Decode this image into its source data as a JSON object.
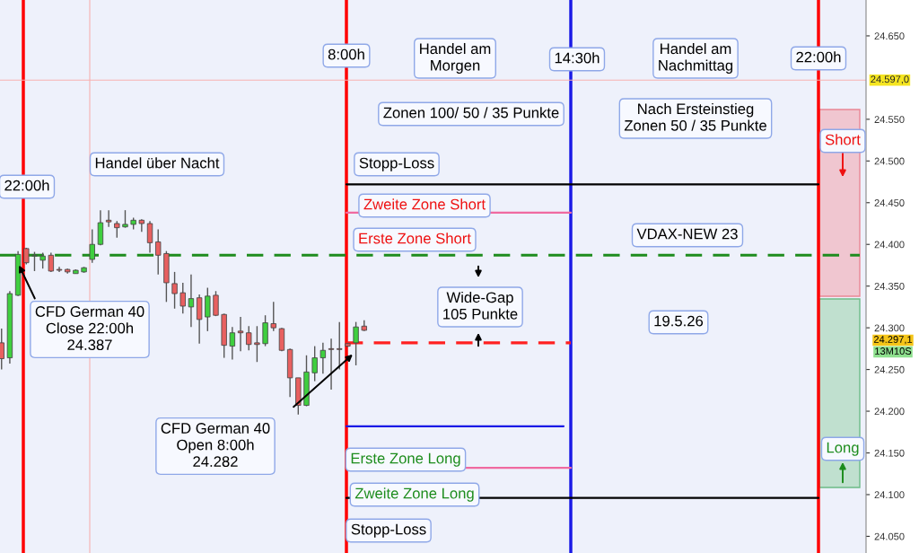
{
  "chart_data": {
    "type": "candlestick",
    "categories": [
      null,
      null,
      null,
      null,
      null,
      null,
      null,
      null,
      null,
      null,
      null,
      null,
      null,
      null,
      null,
      null,
      null,
      null,
      null,
      null,
      null,
      null,
      null,
      null,
      null,
      null,
      null,
      null,
      null,
      null,
      null,
      null,
      null,
      null,
      null,
      null,
      null,
      null,
      null,
      null,
      null,
      null,
      null,
      null,
      null,
      null,
      null,
      null,
      null,
      null,
      null,
      null,
      null,
      null,
      null,
      null,
      null,
      null,
      null,
      null,
      null,
      null,
      null,
      null,
      null,
      null,
      null,
      null,
      null,
      null,
      null,
      null,
      null,
      null,
      null,
      null,
      null,
      null,
      null,
      null,
      null,
      null,
      null,
      null,
      null,
      null,
      null,
      null,
      null,
      null,
      null,
      null,
      null,
      null,
      null,
      null,
      null,
      null,
      null,
      null,
      null,
      null,
      null,
      null,
      null
    ],
    "ohlc": [
      [
        24282,
        24299,
        24250,
        24263
      ],
      [
        24264,
        24344,
        24257,
        24341
      ],
      [
        24339,
        24392,
        24338,
        24388
      ],
      [
        24395,
        24396,
        24376,
        24378
      ],
      [
        24386,
        24391,
        24368,
        24387
      ],
      [
        24381,
        24390,
        24371,
        24386
      ],
      [
        24387,
        24390,
        24367,
        24368
      ],
      [
        24370,
        24373,
        24367,
        24369
      ],
      [
        24370,
        24371,
        24365,
        24367
      ],
      [
        24365,
        24370,
        24365,
        24369
      ],
      [
        24367,
        24373,
        24366,
        24372
      ],
      [
        24382,
        24418,
        24378,
        24400
      ],
      [
        24400,
        24441,
        24399,
        24426
      ],
      [
        24429,
        24441,
        24421,
        24427
      ],
      [
        24425,
        24428,
        24408,
        24420
      ],
      [
        24421,
        24441,
        24420,
        24424
      ],
      [
        24424,
        24432,
        24418,
        24429
      ],
      [
        24429,
        24430,
        24415,
        24425
      ],
      [
        24425,
        24428,
        24390,
        24402
      ],
      [
        24403,
        24418,
        24364,
        24387
      ],
      [
        24389,
        24392,
        24331,
        24354
      ],
      [
        24353,
        24367,
        24323,
        24341
      ],
      [
        24342,
        24354,
        24317,
        24326
      ],
      [
        24325,
        24364,
        24301,
        24335
      ],
      [
        24336,
        24340,
        24281,
        24310
      ],
      [
        24313,
        24348,
        24296,
        24338
      ],
      [
        24339,
        24344,
        24314,
        24315
      ],
      [
        24316,
        24317,
        24264,
        24279
      ],
      [
        24278,
        24301,
        24262,
        24294
      ],
      [
        24296,
        24313,
        24272,
        24294
      ],
      [
        24294,
        24302,
        24273,
        24280
      ],
      [
        24282,
        24302,
        24259,
        24280
      ],
      [
        24281,
        24315,
        24278,
        24306
      ],
      [
        24305,
        24331,
        24296,
        24300
      ],
      [
        24299,
        24300,
        24272,
        24273
      ],
      [
        24274,
        24275,
        24217,
        24240
      ],
      [
        24240,
        24240,
        24196,
        24207
      ],
      [
        24207,
        24267,
        24206,
        24247
      ],
      [
        24246,
        24278,
        24236,
        24264
      ],
      [
        24264,
        24282,
        24245,
        24273
      ],
      [
        24275,
        24287,
        24226,
        24274
      ],
      [
        24275,
        24307,
        24250,
        24274
      ],
      [
        24281,
        24282,
        24277,
        24278
      ],
      [
        24282,
        24307,
        24255,
        24301
      ],
      [
        24302,
        24309,
        24296,
        24297
      ],
      null,
      null,
      null,
      null,
      null,
      null,
      null,
      null,
      null,
      null,
      null,
      null,
      null,
      null,
      null,
      null,
      null,
      null,
      null,
      null,
      null,
      null,
      null,
      null,
      null,
      null,
      null,
      null,
      null,
      null,
      null,
      null,
      null,
      null,
      null,
      null,
      null,
      null,
      null,
      null,
      null,
      null,
      null,
      null,
      null,
      null,
      null,
      null,
      null,
      null,
      null,
      null,
      null,
      null,
      null,
      null,
      null,
      null,
      null,
      null
    ],
    "ref_lines": [
      {
        "axis": "y",
        "value": 24597,
        "label": "24.597,0",
        "color": "#f7b0b0",
        "line_style": "solid"
      },
      {
        "axis": "y",
        "value": 24387,
        "label": null,
        "color": "#1e8c1e",
        "line_style": "dashed"
      },
      {
        "axis": "y",
        "value": 24472,
        "label": null,
        "color": "#000000",
        "line_style": "solid"
      },
      {
        "axis": "y",
        "value": 24438,
        "label": null,
        "color": "#f06aa0",
        "line_style": "solid"
      },
      {
        "axis": "y",
        "value": 24282,
        "label": null,
        "color": "#ff2020",
        "line_style": "dashed"
      },
      {
        "axis": "y",
        "value": 24182,
        "label": null,
        "color": "#1a1ae6",
        "line_style": "solid"
      },
      {
        "axis": "y",
        "value": 24132,
        "label": null,
        "color": "#f06aa0",
        "line_style": "solid"
      },
      {
        "axis": "y",
        "value": 24096,
        "label": null,
        "color": "#000000",
        "line_style": "solid"
      }
    ],
    "annotations": [
      "Handel über Nacht",
      "Handel am\nMorgen",
      "Handel am\nNachmittag",
      "Zonen 100/ 50 / 35 Punkte",
      "Nach Ersteinstieg\nZonen 50 / 35 Punkte",
      "Stopp-Loss",
      "Zweite Zone Short",
      "Erste Zone Short",
      "VDAX-NEW 23",
      "Wide-Gap\n105 Punkte",
      "19.5.26",
      "CFD German 40\nClose 22:00h\n24.387",
      "CFD German 40\nOpen 8:00h\n24.282",
      "Erste Zone Long",
      "Zweite Zone Long",
      "Stopp-Loss",
      "Short",
      "Long",
      "24.297,1",
      "13M10S",
      "22:00h",
      "8:00h",
      "14:30h",
      "22:00h"
    ],
    "ylim": [
      24030,
      24693
    ],
    "yticks": [
      {
        "value": 24050,
        "label": "24.050"
      },
      {
        "value": 24100,
        "label": "24.100"
      },
      {
        "value": 24150,
        "label": "24.150"
      },
      {
        "value": 24200,
        "label": "24.200"
      },
      {
        "value": 24250,
        "label": "24.250"
      },
      {
        "value": 24300,
        "label": "24.300"
      },
      {
        "value": 24350,
        "label": "24.350"
      },
      {
        "value": 24400,
        "label": "24.400"
      },
      {
        "value": 24450,
        "label": "24.450"
      },
      {
        "value": 24500,
        "label": "24.500"
      },
      {
        "value": 24550,
        "label": "24.550"
      },
      {
        "value": 24650,
        "label": "24.650"
      }
    ]
  }
}
